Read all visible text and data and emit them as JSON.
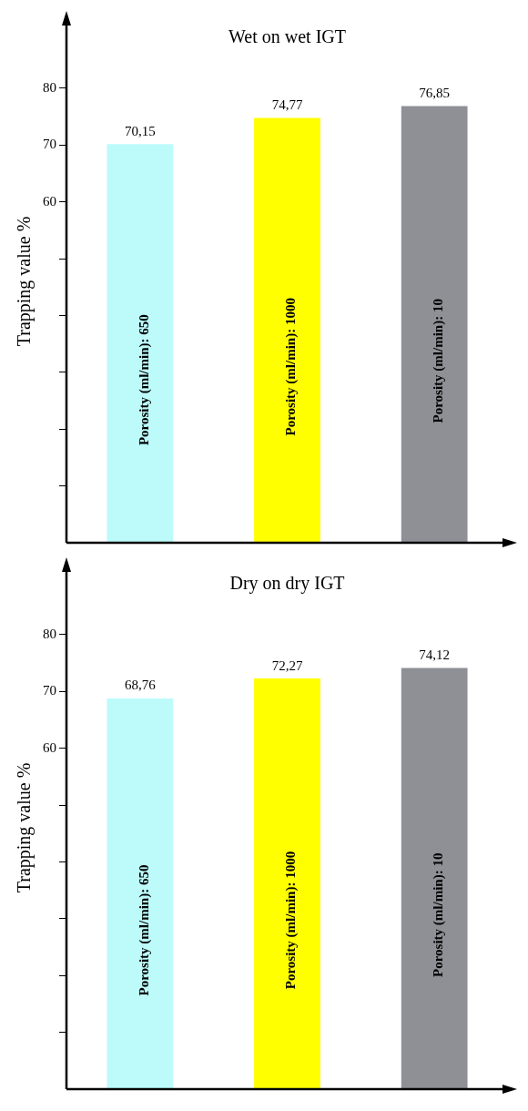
{
  "chart_data": [
    {
      "type": "bar",
      "title": "Wet on wet IGT",
      "ylabel": "Trapping value %",
      "categories": [
        "Porosity (ml/min): 650",
        "Porosity (ml/min): 1000",
        "Porosity (ml/min): 10"
      ],
      "values": [
        70.15,
        74.77,
        76.85
      ],
      "value_labels": [
        "70,15",
        "74,77",
        "76,85"
      ],
      "colors": [
        "#bdfbfb",
        "#ffff00",
        "#8e9096"
      ],
      "ylim": [
        0,
        92
      ],
      "yticks": [
        {
          "value": 10,
          "label": null
        },
        {
          "value": 20,
          "label": null
        },
        {
          "value": 30,
          "label": null
        },
        {
          "value": 40,
          "label": null
        },
        {
          "value": 50,
          "label": null
        },
        60,
        70,
        80
      ]
    },
    {
      "type": "bar",
      "title": "Dry on dry IGT",
      "ylabel": "Trapping value %",
      "categories": [
        "Porosity (ml/min): 650",
        "Porosity (ml/min): 1000",
        "Porosity (ml/min): 10"
      ],
      "values": [
        68.76,
        72.27,
        74.12
      ],
      "value_labels": [
        "68,76",
        "72,27",
        "74,12"
      ],
      "colors": [
        "#bdfbfb",
        "#ffff00",
        "#8e9096"
      ],
      "ylim": [
        0,
        92
      ],
      "yticks": [
        {
          "value": 10,
          "label": null
        },
        {
          "value": 20,
          "label": null
        },
        {
          "value": 30,
          "label": null
        },
        {
          "value": 40,
          "label": null
        },
        {
          "value": 50,
          "label": null
        },
        60,
        70,
        80
      ]
    }
  ]
}
